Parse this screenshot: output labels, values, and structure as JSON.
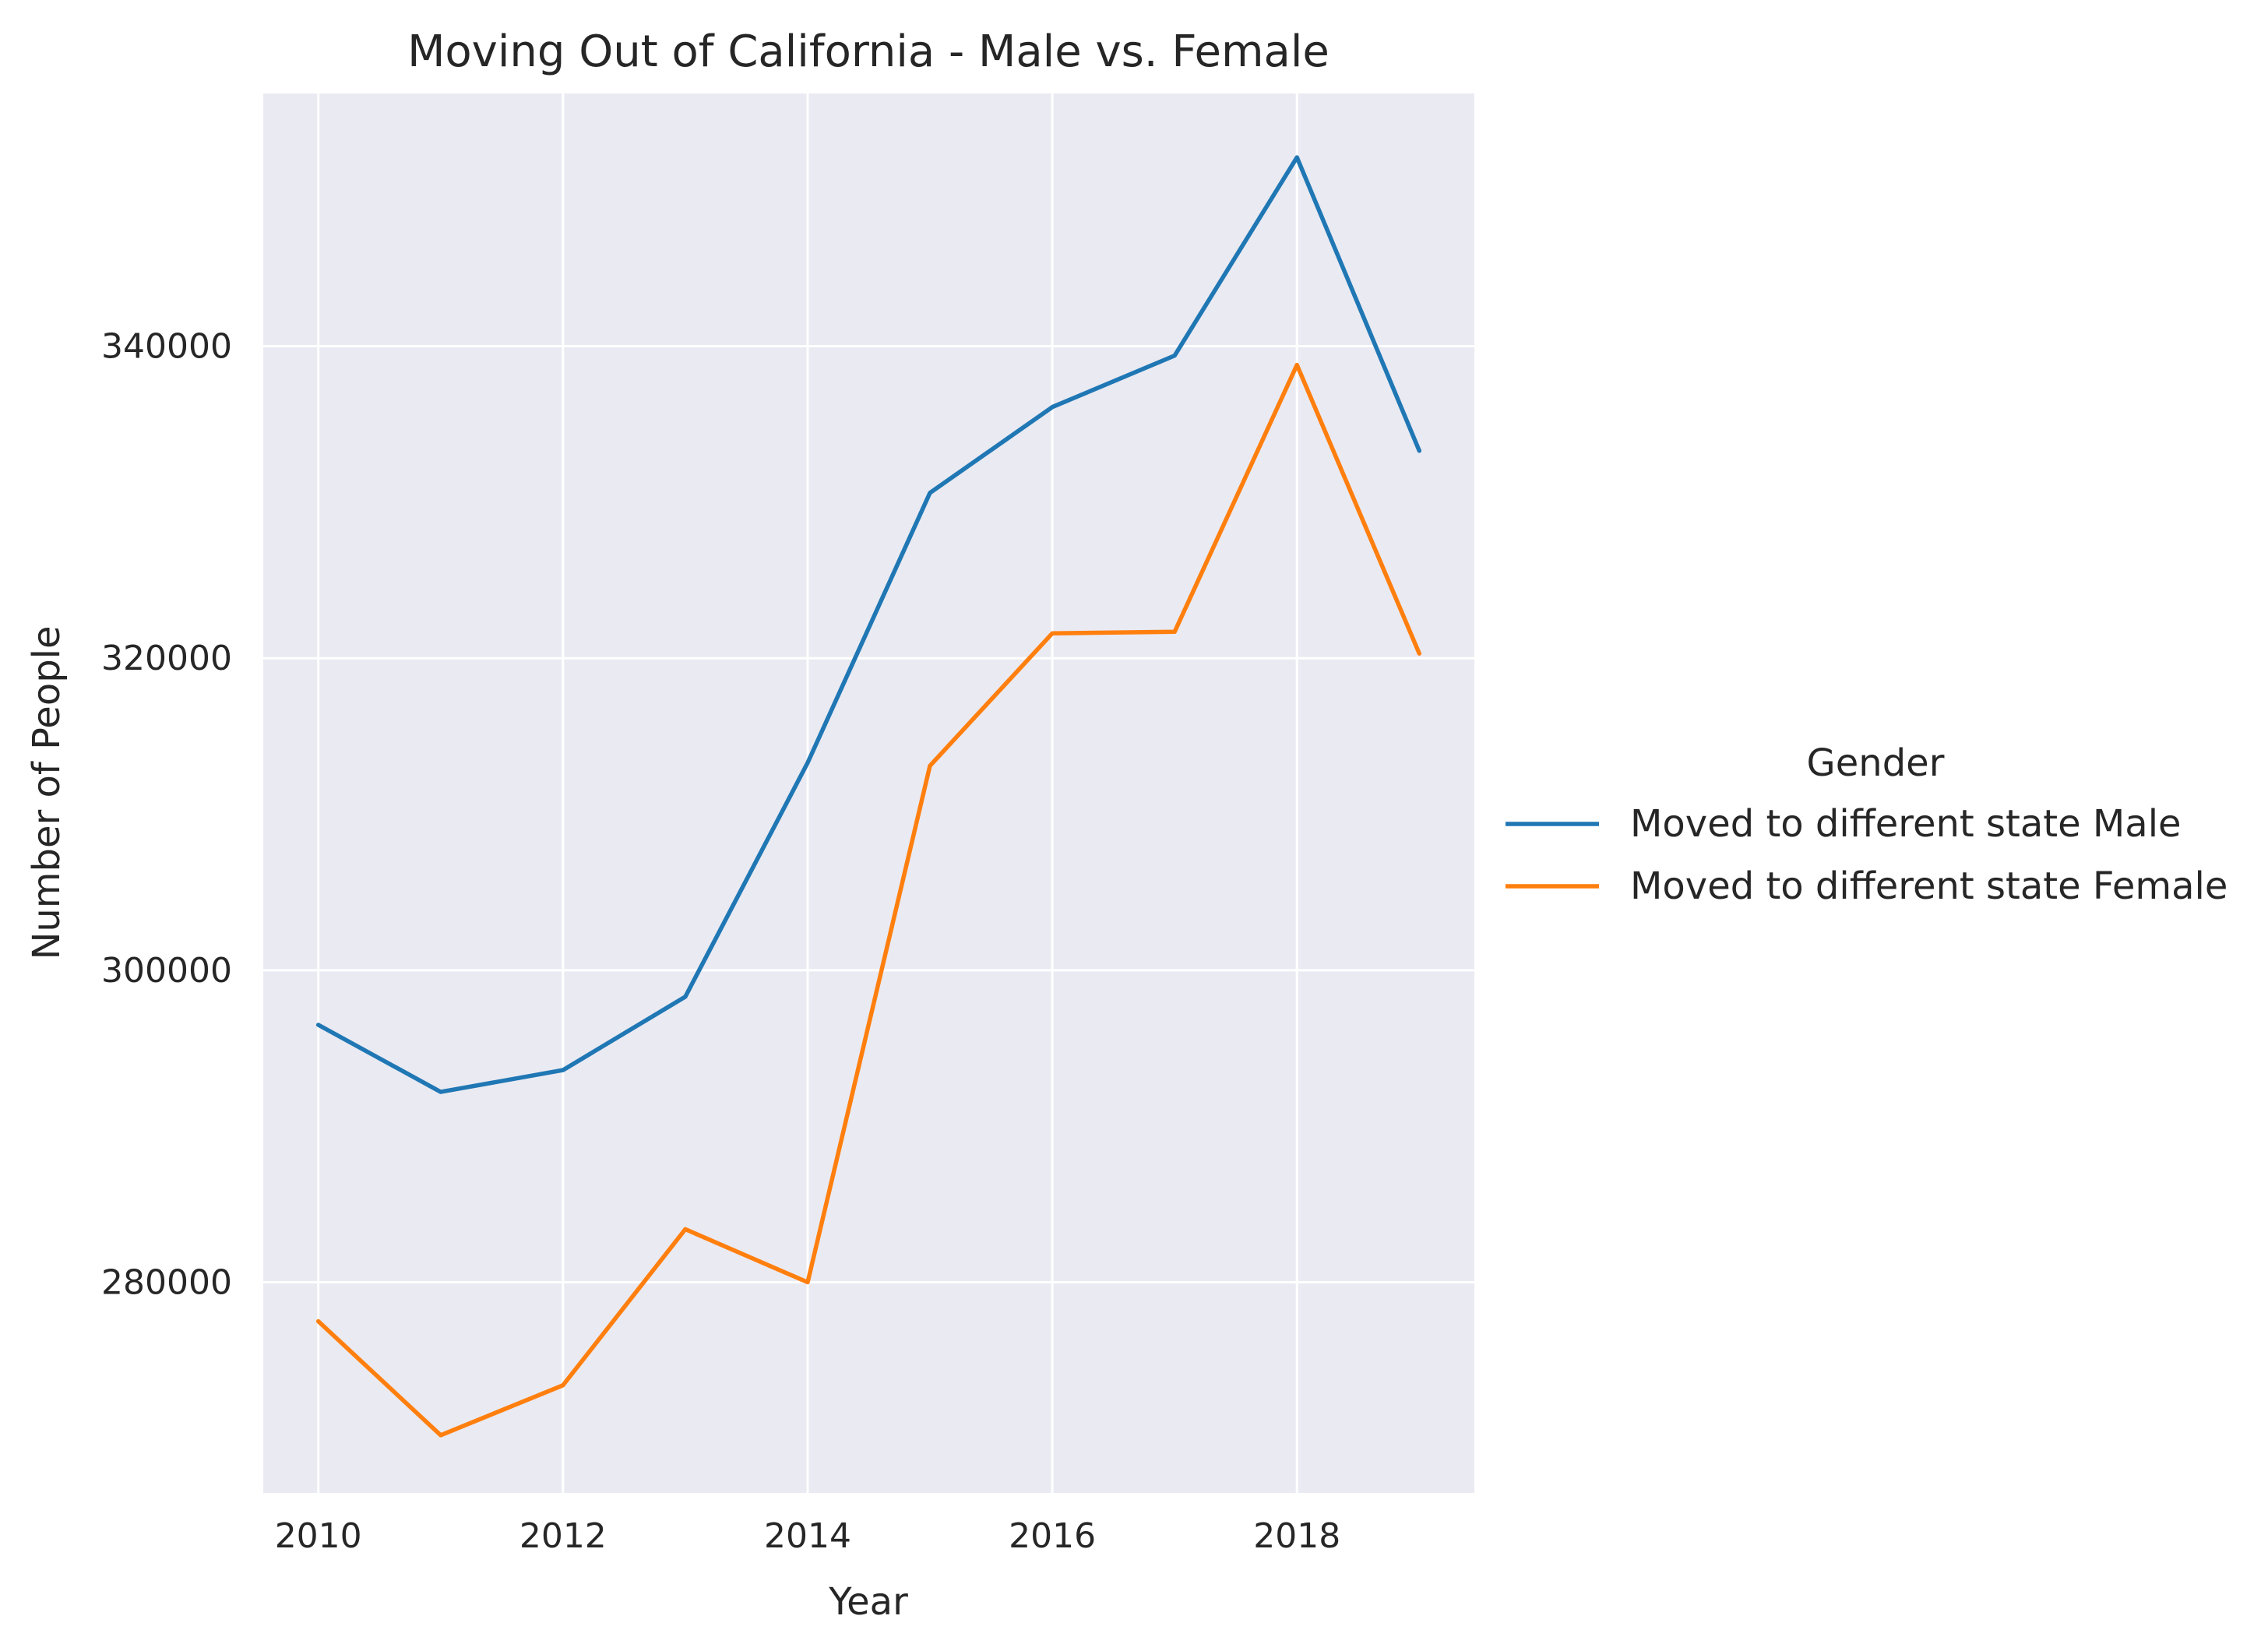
{
  "chart_data": {
    "type": "line",
    "title": "Moving Out of California - Male vs. Female",
    "xlabel": "Year",
    "ylabel": "Number of People",
    "x": [
      2010,
      2011,
      2012,
      2013,
      2014,
      2015,
      2016,
      2017,
      2018,
      2019
    ],
    "xlim": [
      2009.55,
      2019.45
    ],
    "ylim": [
      266500,
      356200
    ],
    "x_ticks": [
      2010,
      2012,
      2014,
      2016,
      2018
    ],
    "x_tick_labels": [
      "2010",
      "2012",
      "2014",
      "2016",
      "2018"
    ],
    "y_ticks": [
      280000,
      300000,
      320000,
      340000
    ],
    "y_tick_labels": [
      "280000",
      "300000",
      "320000",
      "340000"
    ],
    "grid": true,
    "legend": {
      "title": "Gender",
      "placement": "right"
    },
    "series": [
      {
        "name": "Moved to different state Male",
        "color": "#1f77b4",
        "values": [
          296500,
          292200,
          293600,
          298300,
          313300,
          330600,
          336100,
          339400,
          352100,
          333300
        ]
      },
      {
        "name": "Moved to different state Female",
        "color": "#ff7f0e",
        "values": [
          277500,
          270200,
          273400,
          283400,
          280000,
          313100,
          321600,
          321700,
          338800,
          320300
        ]
      }
    ],
    "colors": {
      "plot_background": "#eaeaf2",
      "grid": "#ffffff"
    }
  }
}
